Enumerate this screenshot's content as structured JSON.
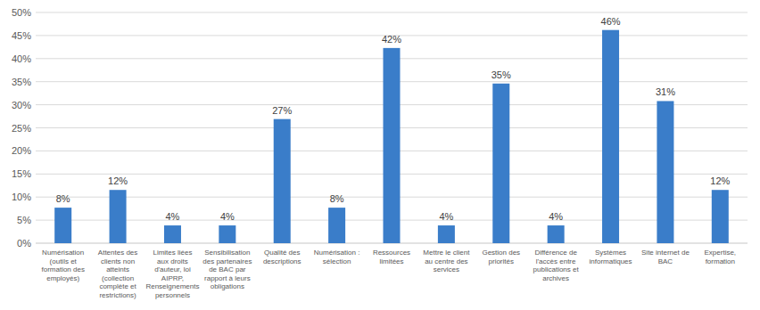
{
  "chart_data": {
    "type": "bar",
    "categories": [
      "Numérisation (outils et formation des employés)",
      "Attentes des clients non atteints (collection complète et restrictions)",
      "Limites liées aux droits d'auteur, loi AIPRP, Renseignements personnels",
      "Sensibilisation des partenaires de BAC par rapport à leurs obligations",
      "Qualité des descriptions",
      "Numérisation : sélection",
      "Ressources limitées",
      "Mettre le client au centre des services",
      "Gestion des priorités",
      "Différence de l'accès entre publications et archives",
      "Systèmes informatiques",
      "Site internet de BAC",
      "Expertise, formation"
    ],
    "values": [
      7.7,
      11.54,
      3.85,
      3.85,
      26.9,
      7.7,
      42.3,
      3.85,
      34.6,
      3.85,
      46.2,
      30.8,
      11.54
    ],
    "value_labels": [
      "8%",
      "12%",
      "4%",
      "4%",
      "27%",
      "8%",
      "42%",
      "4%",
      "35%",
      "4%",
      "46%",
      "31%",
      "12%"
    ],
    "color": "#3a7dc9",
    "ylim": [
      0,
      50
    ],
    "yticks": [
      {
        "value": 0,
        "label": "0%"
      },
      {
        "value": 5,
        "label": "5%"
      },
      {
        "value": 10,
        "label": "10%"
      },
      {
        "value": 15,
        "label": "15%"
      },
      {
        "value": 20,
        "label": "20%"
      },
      {
        "value": 25,
        "label": "25%"
      },
      {
        "value": 30,
        "label": "30%"
      },
      {
        "value": 35,
        "label": "35%"
      },
      {
        "value": 40,
        "label": "40%"
      },
      {
        "value": 45,
        "label": "45%"
      },
      {
        "value": 50,
        "label": "50%"
      }
    ],
    "grid": true,
    "data_labels": true
  }
}
